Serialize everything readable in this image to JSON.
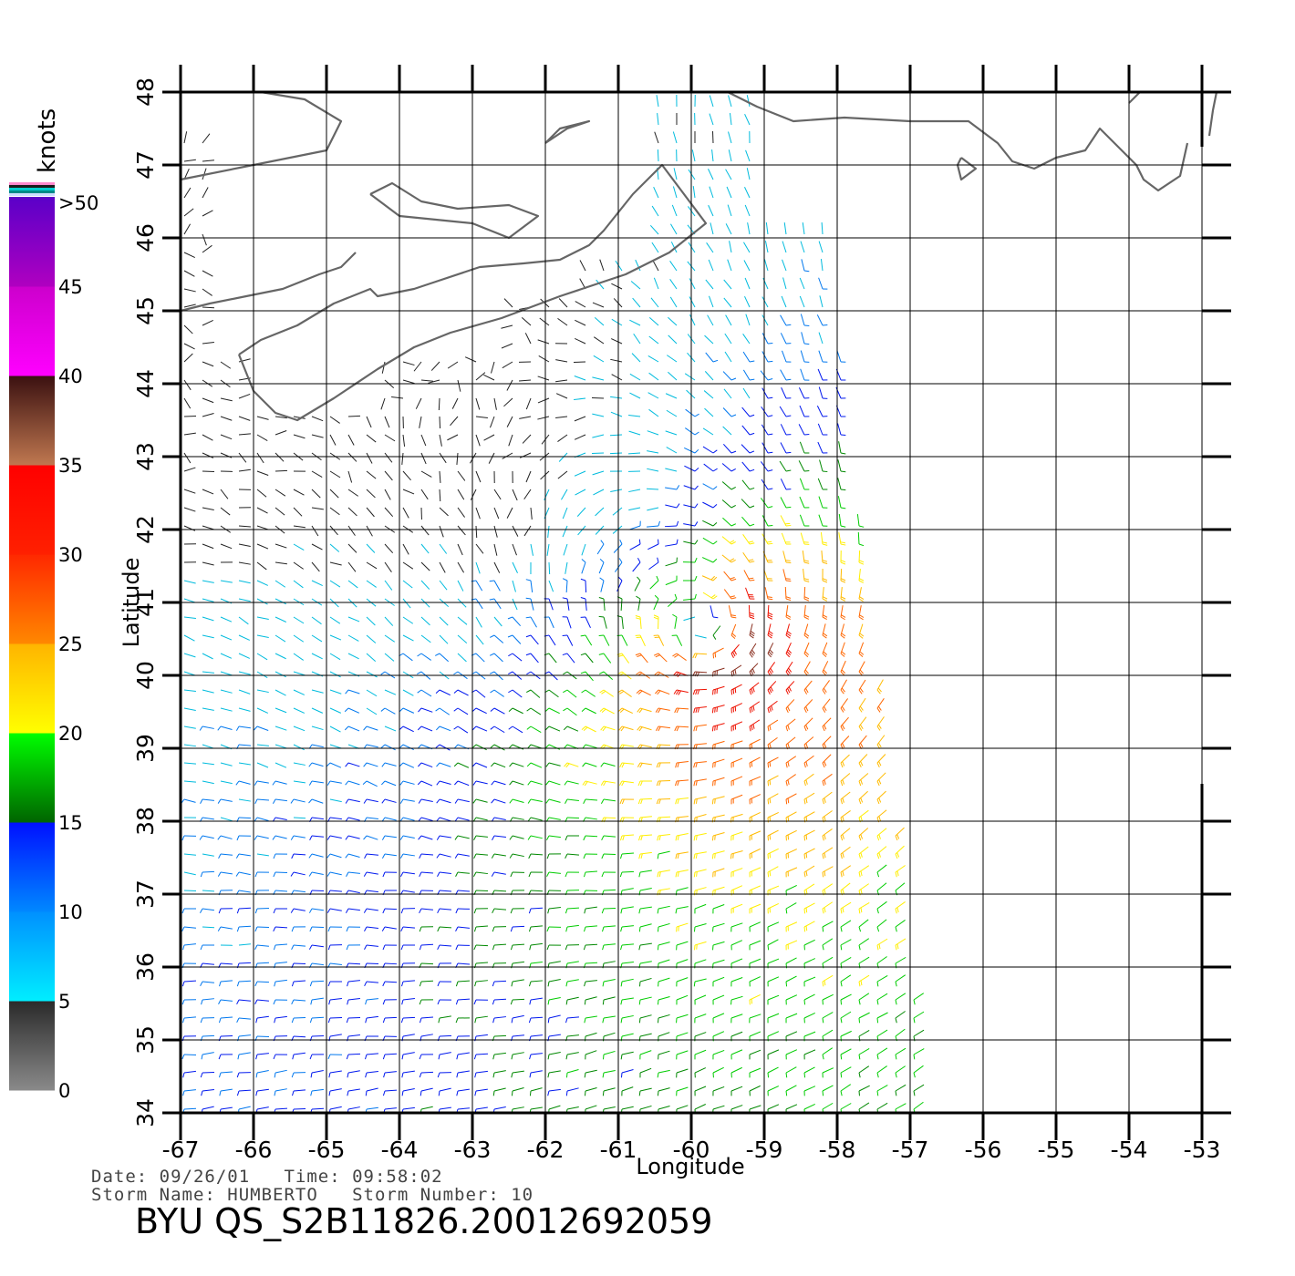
{
  "map": {
    "lon_ticks": [
      "-67",
      "-66",
      "-65",
      "-64",
      "-63",
      "-62",
      "-61",
      "-60",
      "-59",
      "-58",
      "-57",
      "-56",
      "-55",
      "-54",
      "-53"
    ],
    "lat_ticks": [
      "34",
      "35",
      "36",
      "37",
      "38",
      "39",
      "40",
      "41",
      "42",
      "43",
      "44",
      "45",
      "46",
      "47",
      "48"
    ],
    "xlabel": "Longitude",
    "ylabel": "Latitude",
    "lon_range": [
      -67,
      -53
    ],
    "lat_range": [
      34,
      48
    ],
    "grid": true,
    "coastline_color": "#666666",
    "storm_center": {
      "lon": -59.8,
      "lat": 40.6
    }
  },
  "colorbar": {
    "unit_label": "knots",
    "tick_labels": [
      ">50",
      "45",
      "40",
      "35",
      "30",
      "25",
      "20",
      "15",
      "10",
      "5",
      "0"
    ],
    "bands": [
      {
        "from": 0,
        "to": 5,
        "colors": [
          "#8a8a8a",
          "#2a2a2a"
        ]
      },
      {
        "from": 5,
        "to": 10,
        "colors": [
          "#00eeff",
          "#0090ff"
        ]
      },
      {
        "from": 10,
        "to": 15,
        "colors": [
          "#0088ff",
          "#0010ff"
        ]
      },
      {
        "from": 15,
        "to": 20,
        "colors": [
          "#006400",
          "#00ff00"
        ]
      },
      {
        "from": 20,
        "to": 25,
        "colors": [
          "#ffff00",
          "#ffb400"
        ]
      },
      {
        "from": 25,
        "to": 30,
        "colors": [
          "#ff8800",
          "#ff2800"
        ]
      },
      {
        "from": 30,
        "to": 35,
        "colors": [
          "#ff2000",
          "#ff0000"
        ]
      },
      {
        "from": 35,
        "to": 40,
        "colors": [
          "#c07850",
          "#3a1010"
        ]
      },
      {
        "from": 40,
        "to": 45,
        "colors": [
          "#ff00ff",
          "#cc00cc"
        ]
      },
      {
        "from": 45,
        "to": 50,
        "colors": [
          "#b000c0",
          "#5a00c8"
        ]
      }
    ],
    "top_stripes": [
      "#ff88cc",
      "#1a1a1a",
      "#00cccc",
      "#008888",
      "#ccddff"
    ]
  },
  "footer": {
    "date_line": "Date: 09/26/01   Time: 09:58:02",
    "storm_line": "Storm Name: HUMBERTO   Storm Number: 10",
    "product": "BYU QS_S2B11826.20012692059"
  }
}
